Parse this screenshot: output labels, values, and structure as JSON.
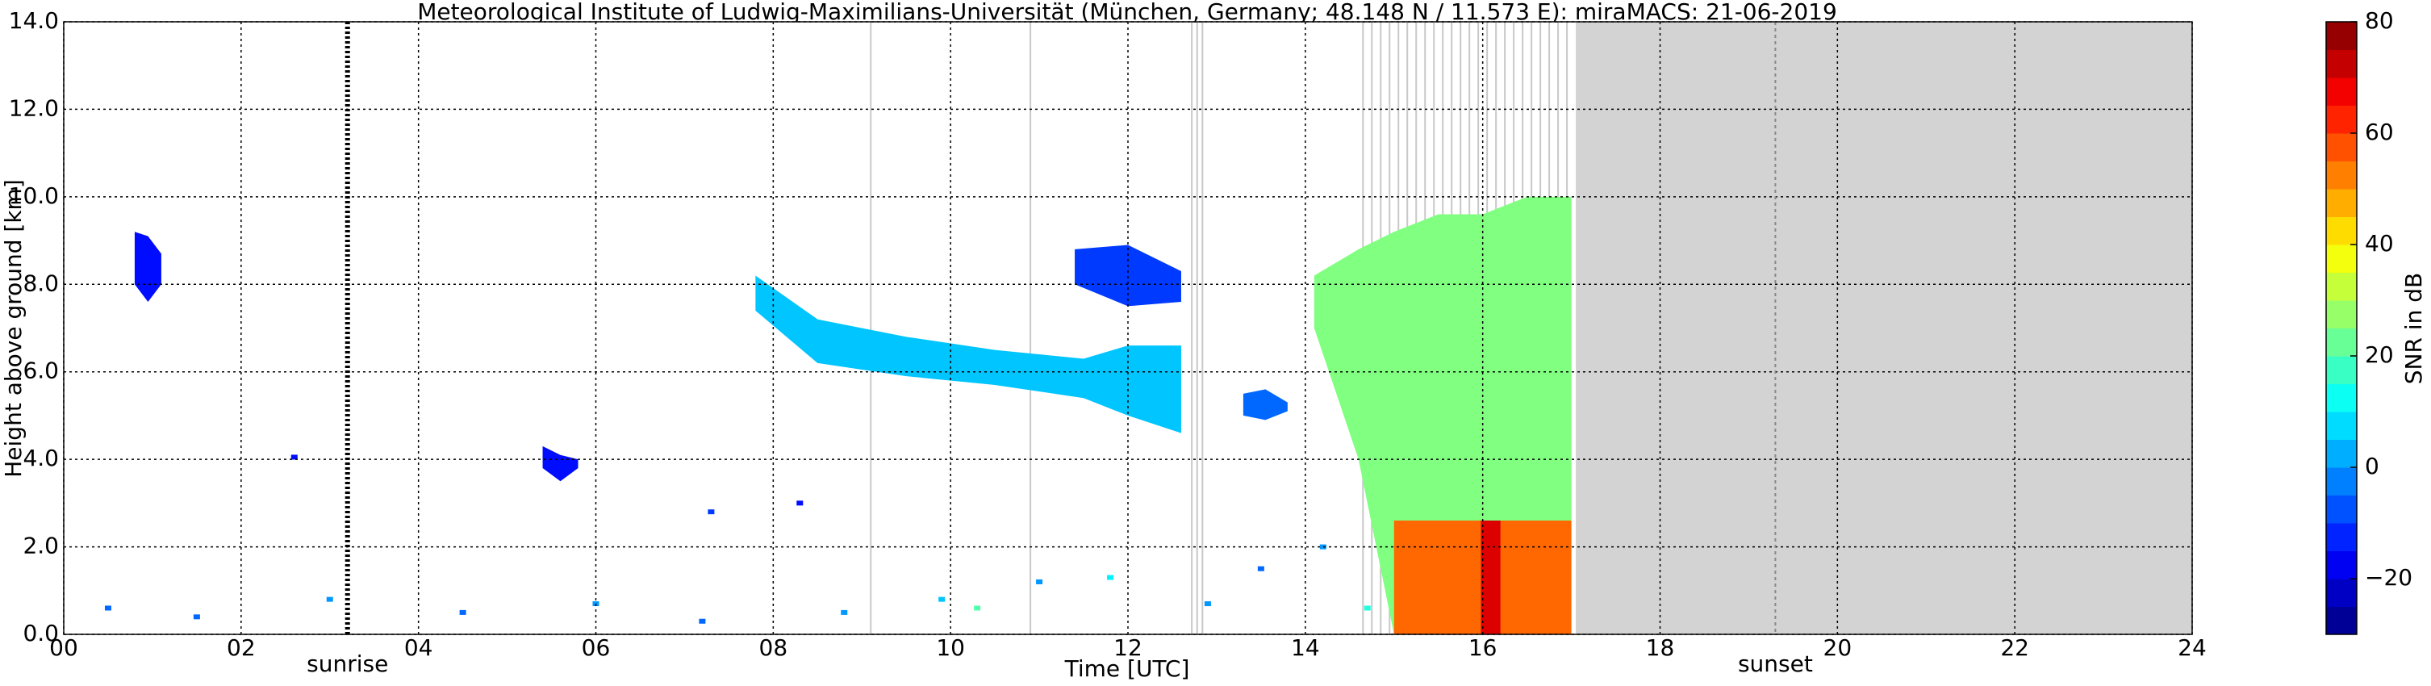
{
  "chart_data": {
    "type": "time-height",
    "title": "Meteorological Institute of Ludwig-Maximilians-Universität (München, Germany; 48.148 N / 11.573 E):    miraMACS: 21-06-2019",
    "x_label": "Time [UTC]",
    "y_label": "Height above ground [km]",
    "colorbar_label": "SNR in dB",
    "colormap": "jet",
    "grid": true,
    "xlim": [
      0,
      24
    ],
    "xticks": [
      {
        "value": 0,
        "label": "00"
      },
      {
        "value": 2,
        "label": "02"
      },
      {
        "value": 4,
        "label": "04"
      },
      {
        "value": 6,
        "label": "06"
      },
      {
        "value": 8,
        "label": "08"
      },
      {
        "value": 10,
        "label": "10"
      },
      {
        "value": 12,
        "label": "12"
      },
      {
        "value": 14,
        "label": "14"
      },
      {
        "value": 16,
        "label": "16"
      },
      {
        "value": 18,
        "label": "18"
      },
      {
        "value": 20,
        "label": "20"
      },
      {
        "value": 22,
        "label": "22"
      },
      {
        "value": 24,
        "label": "24"
      }
    ],
    "ylim": [
      0,
      14
    ],
    "yticks": [
      {
        "value": 0,
        "label": "0.0"
      },
      {
        "value": 2,
        "label": "2.0"
      },
      {
        "value": 4,
        "label": "4.0"
      },
      {
        "value": 6,
        "label": "6.0"
      },
      {
        "value": 8,
        "label": "8.0"
      },
      {
        "value": 10,
        "label": "10.0"
      },
      {
        "value": 12,
        "label": "12.0"
      },
      {
        "value": 14,
        "label": "14.0"
      }
    ],
    "clim": [
      -30,
      80
    ],
    "cticks": [
      {
        "value": -20,
        "label": "−20"
      },
      0,
      20,
      40,
      60,
      80
    ],
    "annotations": [
      {
        "text": "sunrise",
        "x": 3.2
      },
      {
        "text": "sunset",
        "x": 19.3
      }
    ],
    "no_data": [
      17.05,
      24
    ],
    "gaps": [
      9.1,
      10.9,
      12.72,
      12.78,
      12.84,
      14.65,
      14.75,
      14.85,
      14.95,
      15.05,
      15.15,
      15.25,
      15.35,
      15.45,
      15.55,
      15.65,
      15.75,
      15.85,
      15.95,
      16.05,
      16.15,
      16.25,
      16.35,
      16.45,
      16.55,
      16.65,
      16.75,
      16.85,
      16.95
    ],
    "echoes": [
      {
        "x": [
          0.8,
          0.95,
          1.1
        ],
        "top": [
          9.2,
          9.1,
          8.7
        ],
        "bottom": [
          8.0,
          7.6,
          8.0
        ],
        "snr": -15
      },
      {
        "x": [
          7.8,
          8.5,
          9.5,
          10.5,
          11.5,
          12.0,
          12.6
        ],
        "top": [
          8.2,
          7.2,
          6.8,
          6.5,
          6.3,
          6.6,
          6.6
        ],
        "bottom": [
          7.4,
          6.2,
          5.9,
          5.7,
          5.4,
          5.0,
          4.6
        ],
        "snr": 5
      },
      {
        "x": [
          11.4,
          12.0,
          12.6
        ],
        "top": [
          8.8,
          8.9,
          8.3
        ],
        "bottom": [
          8.0,
          7.5,
          7.6
        ],
        "snr": -10
      },
      {
        "x": [
          13.3,
          13.55,
          13.8
        ],
        "top": [
          5.5,
          5.6,
          5.3
        ],
        "bottom": [
          5.0,
          4.9,
          5.1
        ],
        "snr": -5
      },
      {
        "x": [
          5.4,
          5.6,
          5.8
        ],
        "top": [
          4.3,
          4.1,
          4.0
        ],
        "bottom": [
          3.8,
          3.5,
          3.8
        ],
        "snr": -15
      },
      {
        "x": [
          14.1,
          14.6,
          15.0,
          15.5,
          16.0,
          16.5,
          17.0
        ],
        "top": [
          8.2,
          8.8,
          9.2,
          9.6,
          9.6,
          10.0,
          10.0
        ],
        "bottom": [
          7.0,
          4.0,
          0,
          0,
          0,
          0,
          0
        ],
        "snr": 25
      },
      {
        "x": [
          15.0,
          16.0,
          17.0
        ],
        "top": [
          2.6,
          2.6,
          2.6
        ],
        "bottom": [
          0,
          0,
          0
        ],
        "snr": 55
      },
      {
        "x": [
          15.98,
          16.2
        ],
        "top": [
          2.6,
          2.6
        ],
        "bottom": [
          0,
          0
        ],
        "snr": 70
      }
    ],
    "clutter": [
      [
        0.5,
        0.6,
        -5
      ],
      [
        1.5,
        0.4,
        -5
      ],
      [
        2.6,
        4.05,
        -15
      ],
      [
        3.0,
        0.8,
        0
      ],
      [
        4.5,
        0.5,
        -5
      ],
      [
        6.0,
        0.7,
        0
      ],
      [
        7.2,
        0.3,
        -5
      ],
      [
        8.8,
        0.5,
        0
      ],
      [
        9.9,
        0.8,
        5
      ],
      [
        10.3,
        0.6,
        20
      ],
      [
        11.0,
        1.2,
        0
      ],
      [
        11.8,
        1.3,
        10
      ],
      [
        12.9,
        0.7,
        0
      ],
      [
        13.5,
        1.5,
        -5
      ],
      [
        14.2,
        2.0,
        0
      ],
      [
        14.7,
        0.6,
        15
      ],
      [
        7.3,
        2.8,
        -10
      ],
      [
        8.3,
        3.0,
        -15
      ]
    ]
  }
}
